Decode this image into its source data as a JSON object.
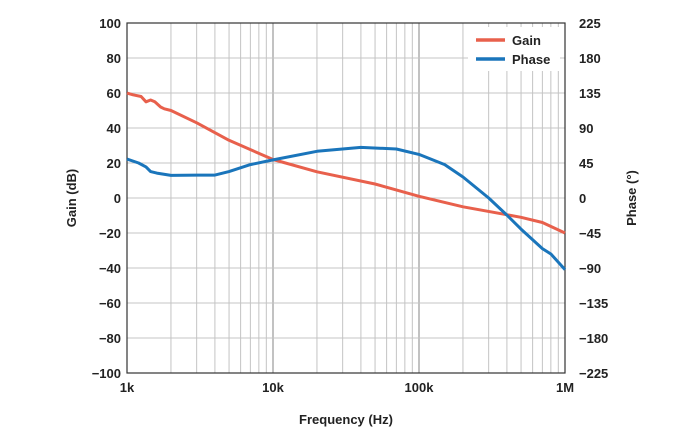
{
  "chart_data": {
    "type": "line",
    "xlabel": "Frequency (Hz)",
    "ylabel": "Gain (dB)",
    "y2label": "Phase (°)",
    "xscale": "log",
    "xlim": [
      1000,
      1000000
    ],
    "ylim": [
      -100,
      100
    ],
    "y2lim": [
      -225,
      225
    ],
    "grid": true,
    "legend": "top-right",
    "x_ticks": [
      {
        "v": 1000,
        "label": "1k"
      },
      {
        "v": 10000,
        "label": "10k"
      },
      {
        "v": 100000,
        "label": "100k"
      },
      {
        "v": 1000000,
        "label": "1M"
      }
    ],
    "y_ticks": [
      "100",
      "80",
      "60",
      "40",
      "20",
      "0",
      "−20",
      "−40",
      "−60",
      "−80",
      "−100"
    ],
    "y2_ticks": [
      "225",
      "180",
      "135",
      "90",
      "45",
      "0",
      "−45",
      "−90",
      "−135",
      "−180",
      "−225"
    ],
    "series": [
      {
        "name": "Gain",
        "axis": "left",
        "color": "#e8604c",
        "x": [
          1000,
          1100,
          1250,
          1350,
          1450,
          1550,
          1700,
          1800,
          2000,
          3000,
          5000,
          10000,
          20000,
          50000,
          100000,
          200000,
          500000,
          700000,
          1000000
        ],
        "y": [
          60,
          59,
          58,
          55,
          56,
          55,
          52,
          51,
          50,
          43,
          33,
          22,
          15,
          8,
          1,
          -5,
          -11,
          -14,
          -20
        ]
      },
      {
        "name": "Phase",
        "axis": "right",
        "color": "#1a75bb",
        "x": [
          1000,
          1200,
          1350,
          1450,
          1600,
          2000,
          3000,
          4000,
          5000,
          7000,
          10000,
          20000,
          40000,
          70000,
          100000,
          150000,
          200000,
          300000,
          400000,
          500000,
          700000,
          800000,
          1000000
        ],
        "y": [
          50,
          45,
          40,
          34,
          32,
          29,
          29.5,
          29.5,
          34,
          43,
          49,
          60,
          65,
          63,
          56,
          43,
          27,
          0,
          -22,
          -40,
          -65,
          -72,
          -92
        ]
      }
    ]
  }
}
